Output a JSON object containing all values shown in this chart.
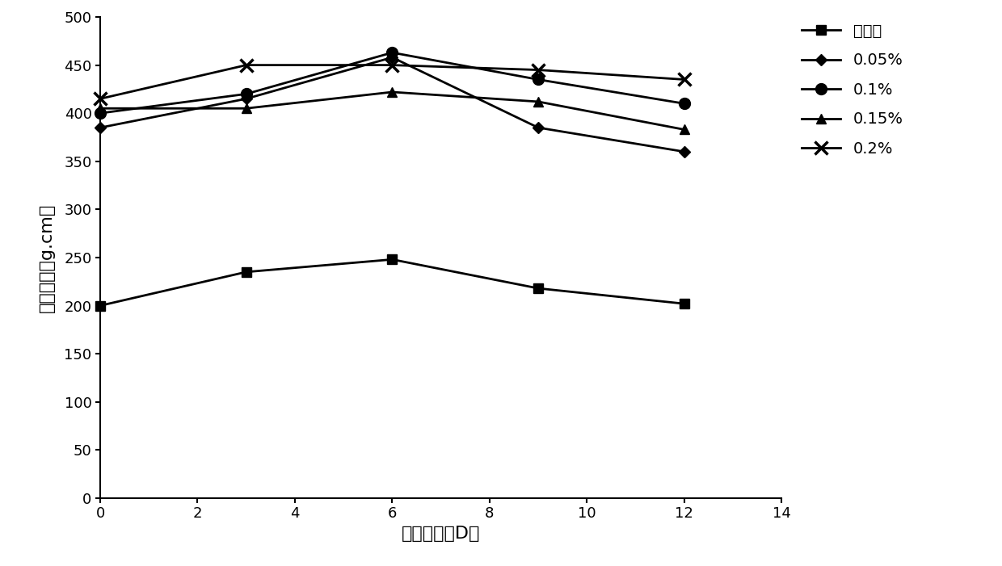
{
  "x": [
    0,
    3,
    6,
    9,
    12
  ],
  "series": [
    {
      "label": "对照组",
      "values": [
        200,
        235,
        248,
        218,
        202
      ],
      "marker": "s",
      "markersize": 8,
      "linewidth": 2.0
    },
    {
      "label": "0.05%",
      "values": [
        385,
        415,
        458,
        385,
        360
      ],
      "marker": "D",
      "markersize": 7,
      "linewidth": 2.0
    },
    {
      "label": "0.1%",
      "values": [
        400,
        420,
        463,
        435,
        410
      ],
      "marker": "o",
      "markersize": 10,
      "linewidth": 2.0
    },
    {
      "label": "0.15%",
      "values": [
        405,
        405,
        422,
        412,
        383
      ],
      "marker": "^",
      "markersize": 9,
      "linewidth": 2.0
    },
    {
      "label": "0.2%",
      "values": [
        415,
        450,
        450,
        445,
        435
      ],
      "marker": "x",
      "markersize": 11,
      "linewidth": 2.0,
      "markeredgewidth": 2.5
    }
  ],
  "color": "#000000",
  "xlabel": "贮藏天数（D）",
  "ylabel": "凝胶强度（g.cm）",
  "xlim": [
    0,
    14
  ],
  "ylim": [
    0,
    500
  ],
  "xticks": [
    0,
    2,
    4,
    6,
    8,
    10,
    12,
    14
  ],
  "yticks": [
    0,
    50,
    100,
    150,
    200,
    250,
    300,
    350,
    400,
    450,
    500
  ],
  "figsize": [
    12.4,
    7.01
  ],
  "dpi": 100
}
